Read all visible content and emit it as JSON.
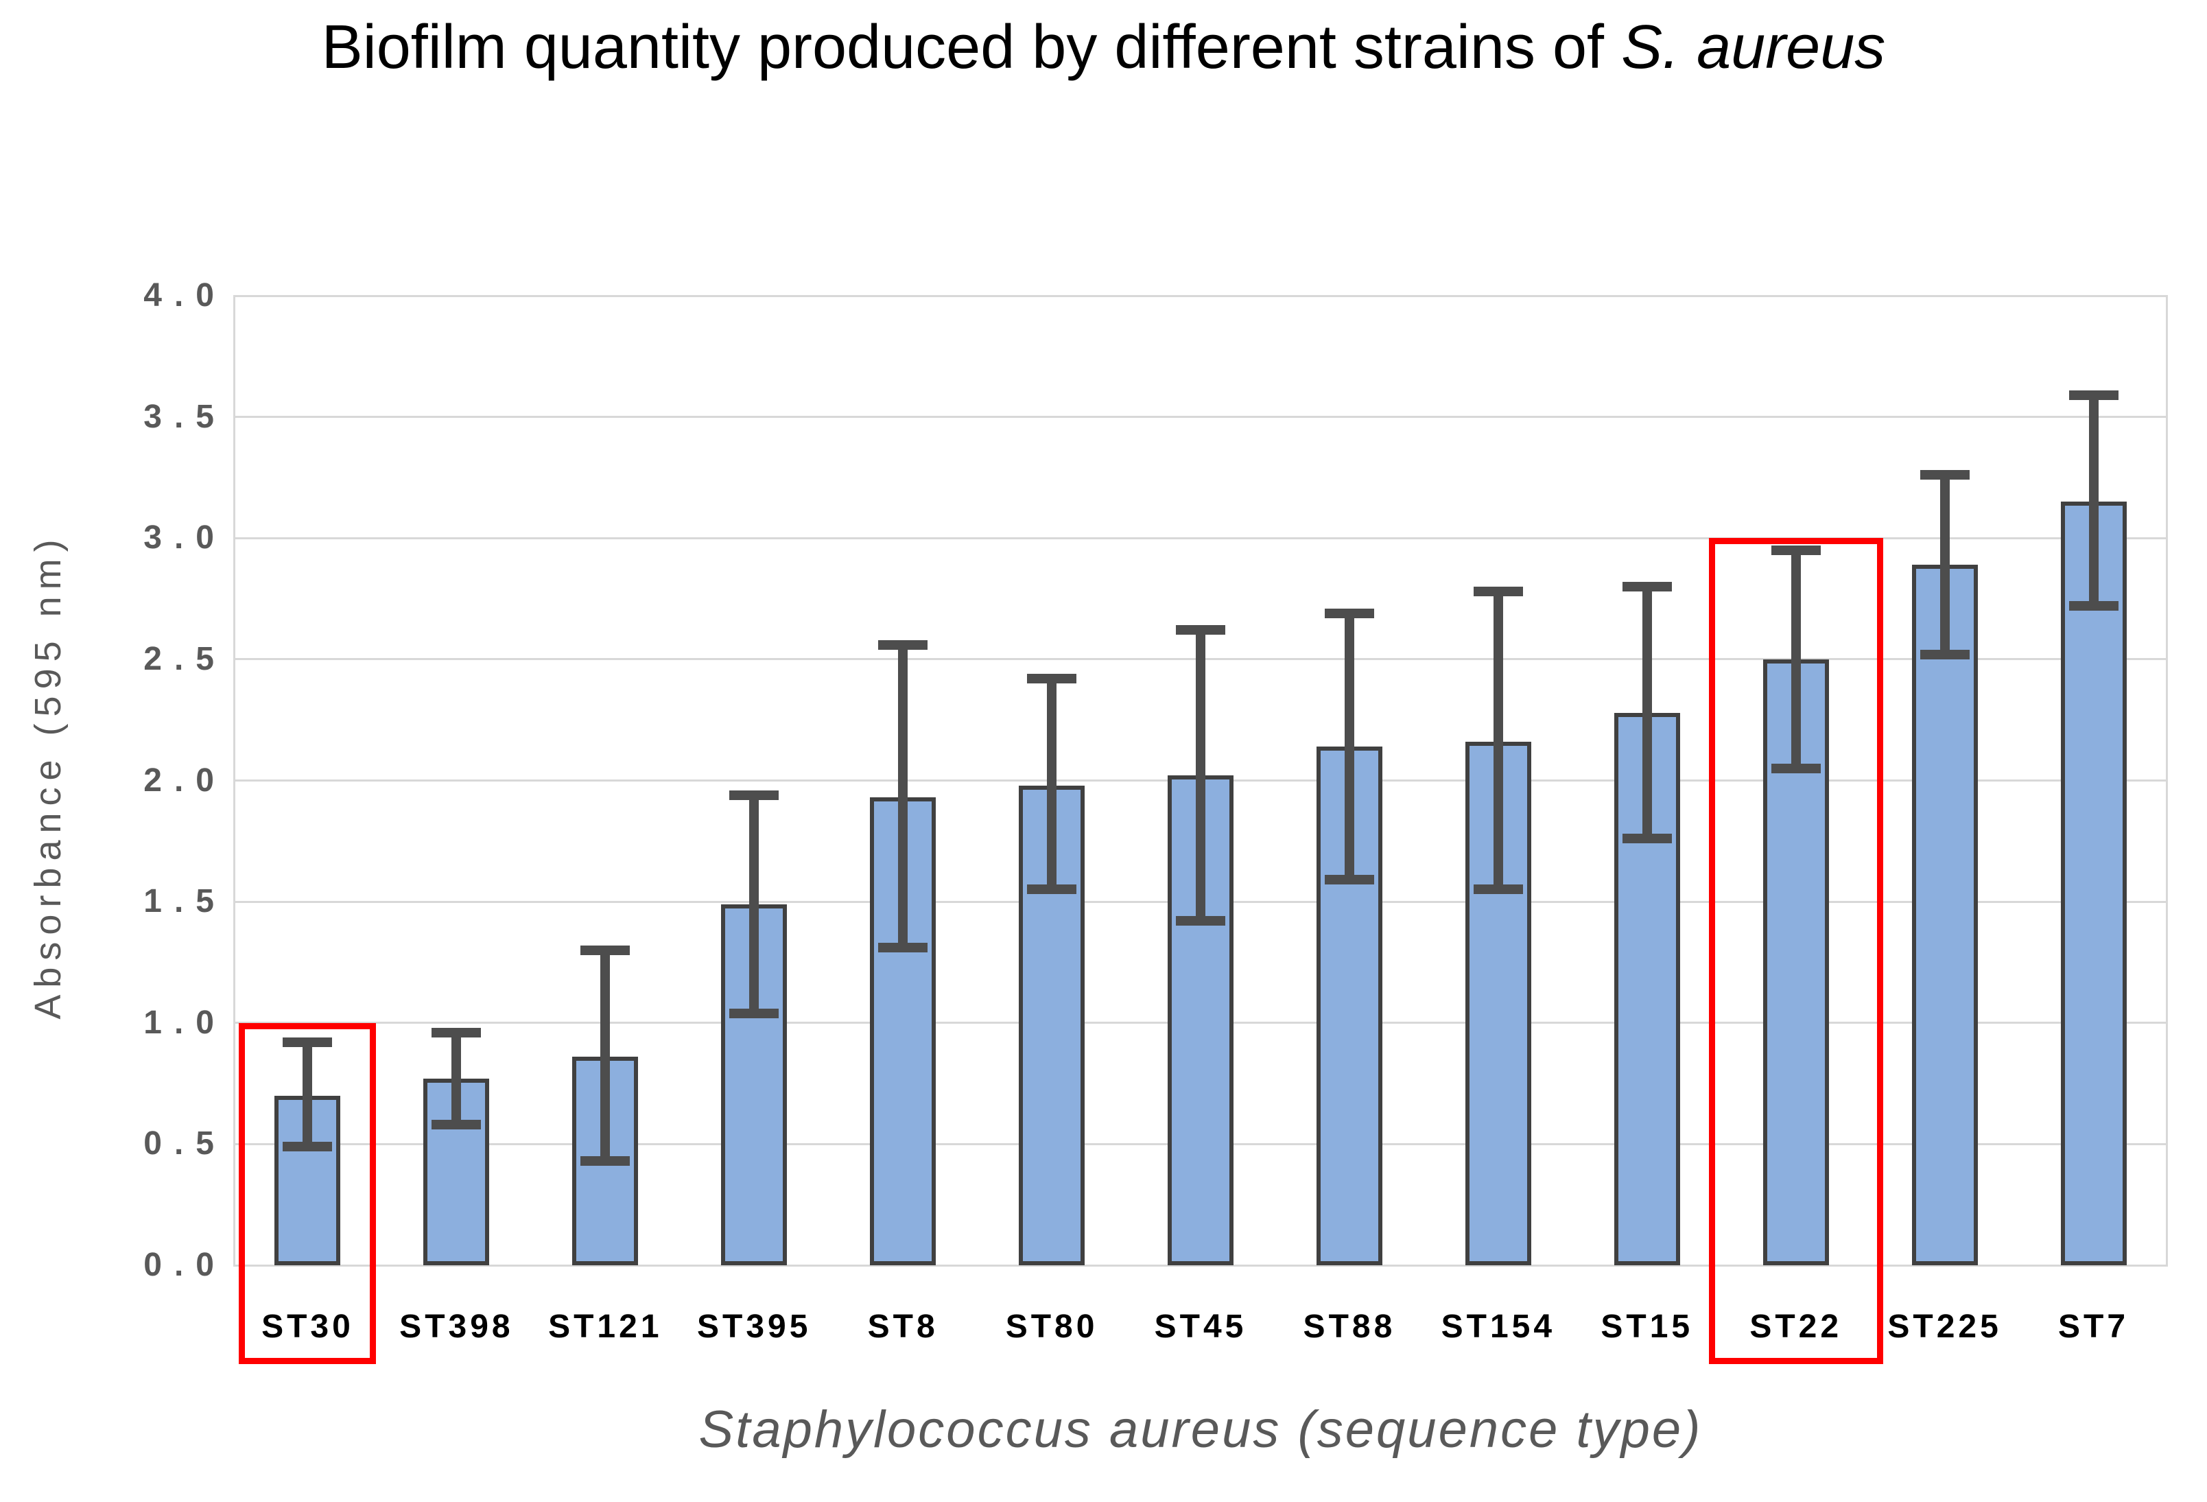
{
  "title": {
    "regular": "Biofilm quantity produced by different strains of ",
    "italic": "S. aureus"
  },
  "chart_data": {
    "type": "bar",
    "title": "Biofilm quantity produced by different strains of S. aureus",
    "xlabel": "Staphylococcus aureus (sequence type)",
    "ylabel": "Absorbance (595 nm)",
    "categories": [
      "ST30",
      "ST398",
      "ST121",
      "ST395",
      "ST8",
      "ST80",
      "ST45",
      "ST88",
      "ST154",
      "ST15",
      "ST22",
      "ST225",
      "ST7"
    ],
    "values": [
      0.7,
      0.77,
      0.86,
      1.49,
      1.93,
      1.98,
      2.02,
      2.14,
      2.16,
      2.28,
      2.5,
      2.89,
      3.15
    ],
    "error_low": [
      0.49,
      0.58,
      0.43,
      1.04,
      1.31,
      1.55,
      1.42,
      1.59,
      1.55,
      1.76,
      2.05,
      2.52,
      2.72
    ],
    "error_high": [
      0.92,
      0.96,
      1.3,
      1.94,
      2.56,
      2.42,
      2.62,
      2.69,
      2.78,
      2.8,
      2.95,
      3.26,
      3.59
    ],
    "ylim": [
      0.0,
      4.0
    ],
    "yticks": [
      "0.0",
      "0.5",
      "1.0",
      "1.5",
      "2.0",
      "2.5",
      "3.0",
      "3.5",
      "4.0"
    ],
    "grid": true,
    "legend": "none",
    "bar_color": "#8cafde",
    "bar_border_color": "#404040",
    "error_color": "#4d4d4d",
    "gridline_color": "#d8d8d8",
    "highlight_color": "#ff0000",
    "highlights": [
      {
        "label": "ST30",
        "box_top_value": 1.0
      },
      {
        "label": "ST22",
        "box_top_value": 3.0
      }
    ]
  }
}
